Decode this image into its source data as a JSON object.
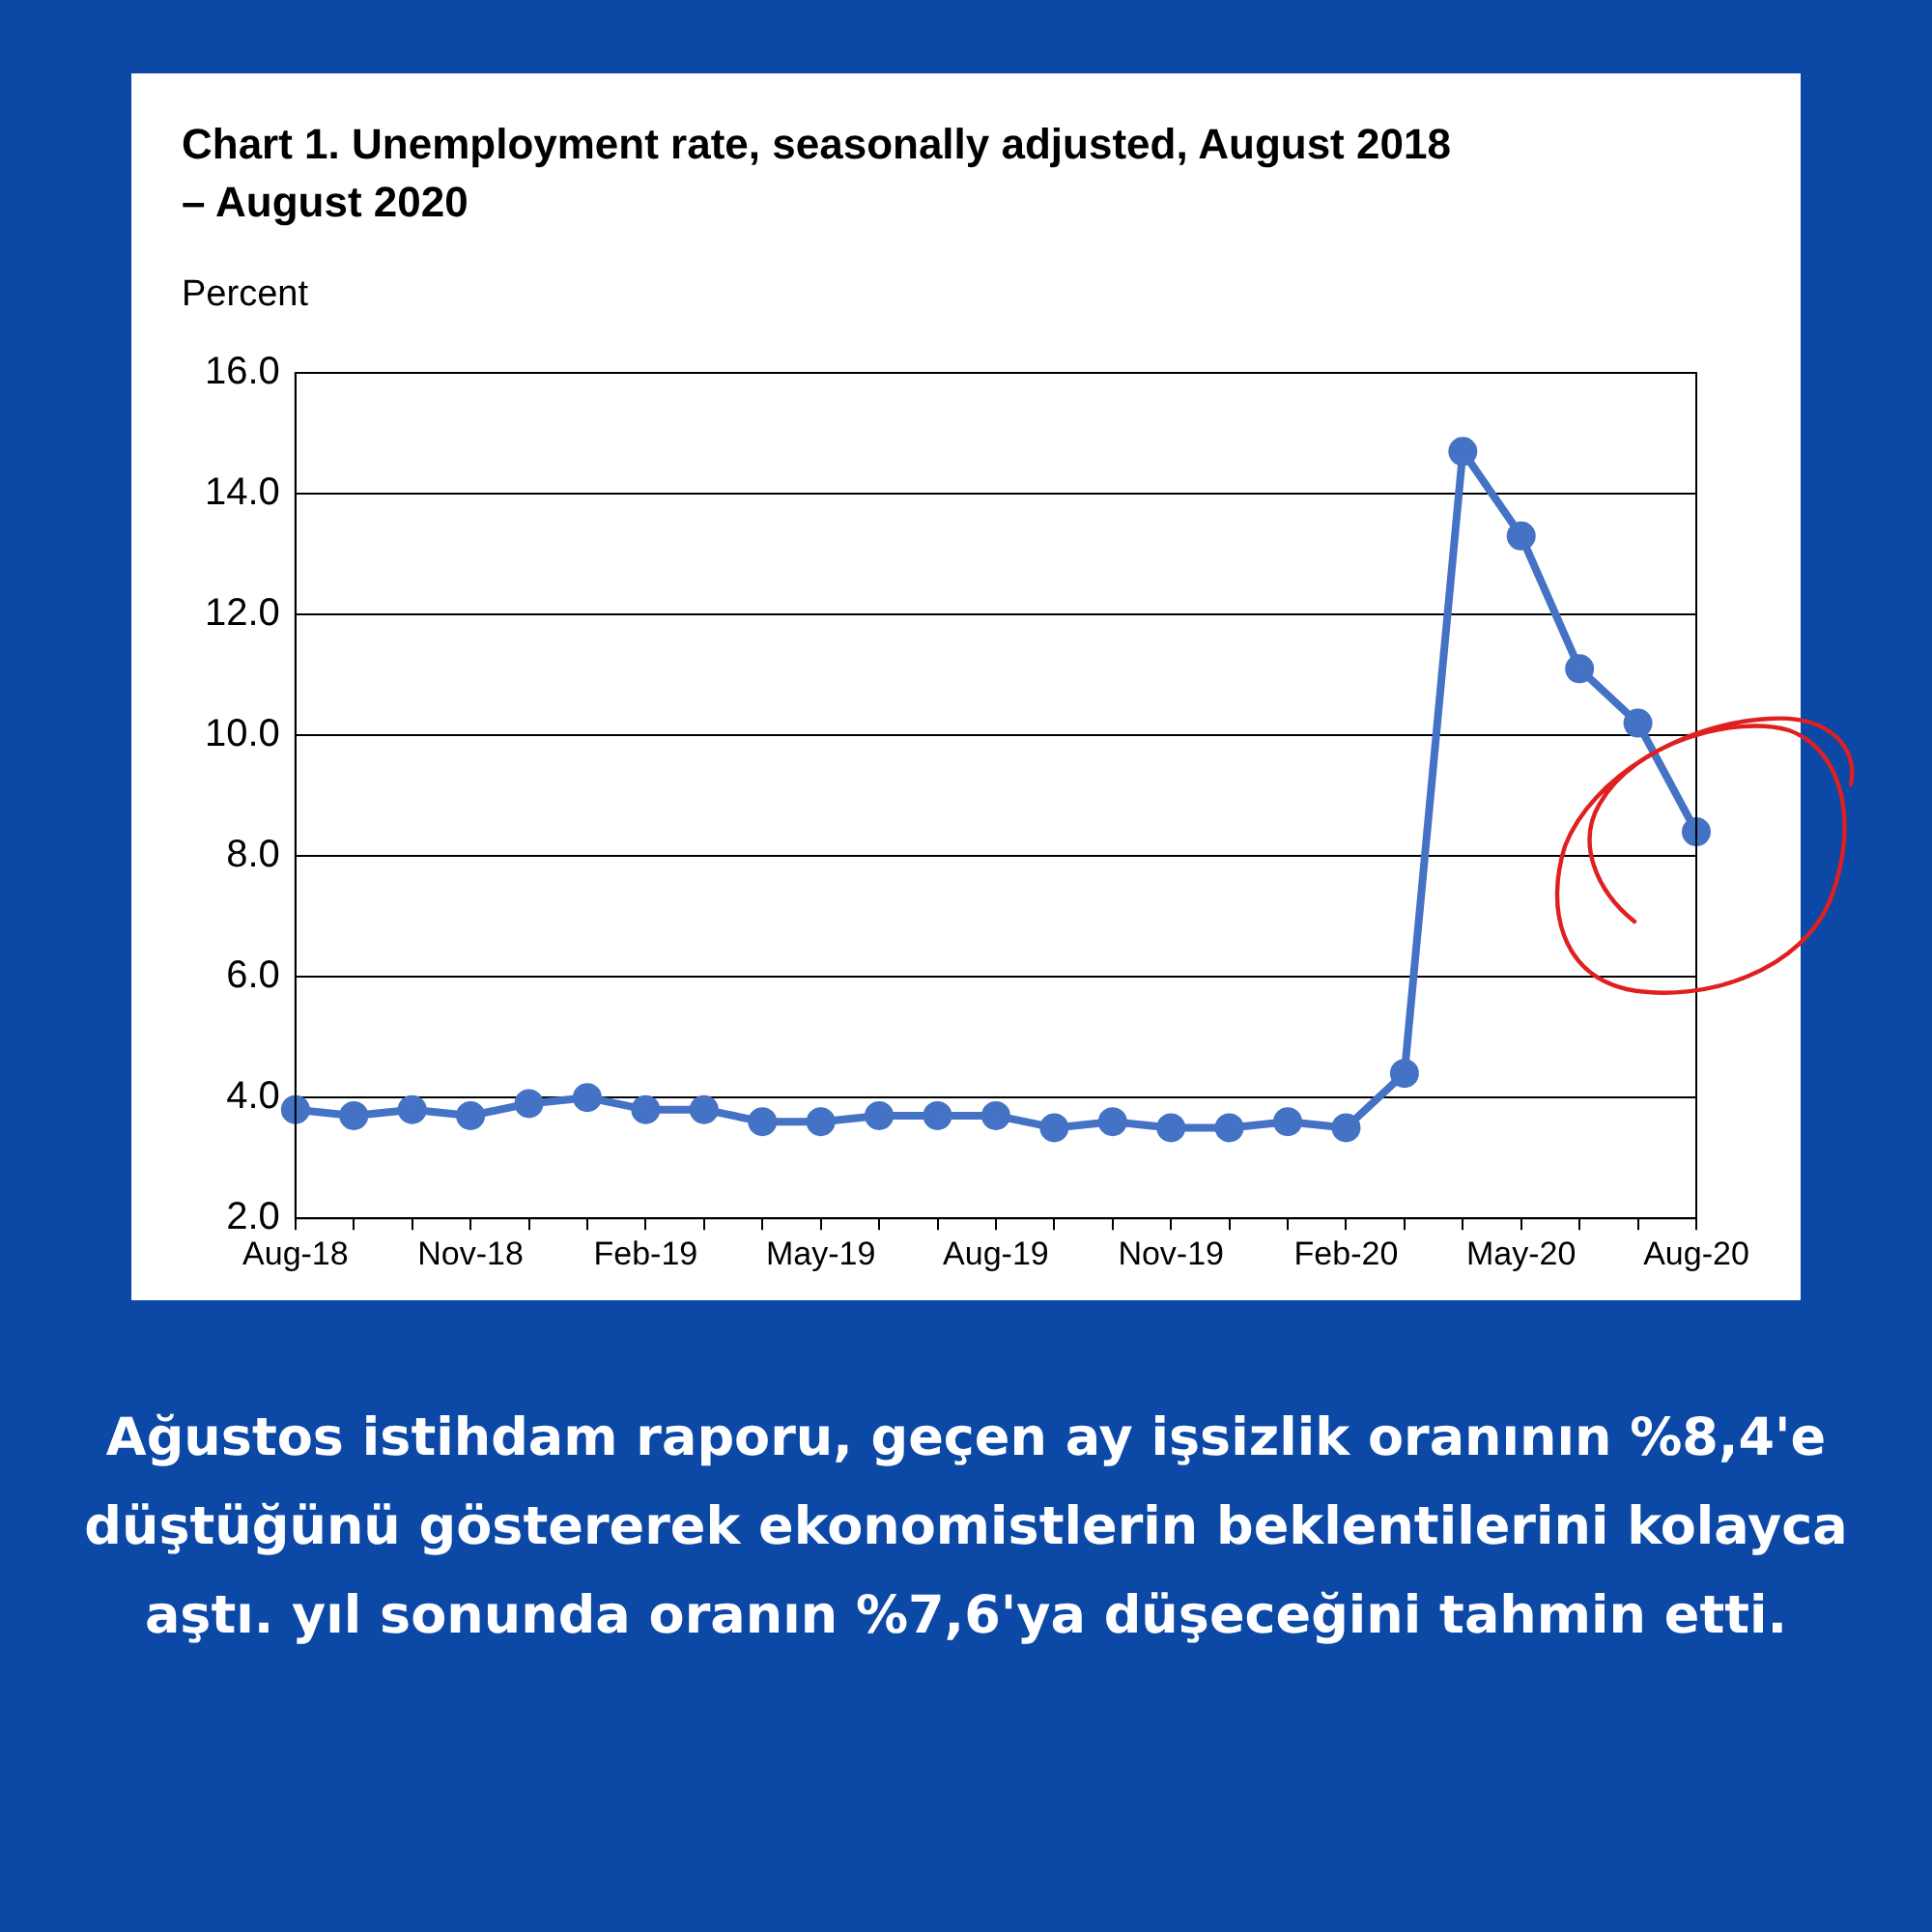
{
  "chart_data": {
    "type": "line",
    "title": "Chart 1. Unemployment rate, seasonally adjusted, August 2018 – August 2020",
    "ylabel": "Percent",
    "categories": [
      "Aug-18",
      null,
      null,
      "Nov-18",
      null,
      null,
      "Feb-19",
      null,
      null,
      "May-19",
      null,
      null,
      "Aug-19",
      null,
      null,
      "Nov-19",
      null,
      null,
      "Feb-20",
      null,
      null,
      "May-20",
      null,
      null,
      "Aug-20"
    ],
    "series": [
      {
        "color": "#4472c4",
        "values": [
          3.8,
          3.7,
          3.8,
          3.7,
          3.9,
          4.0,
          3.8,
          3.8,
          3.6,
          3.6,
          3.7,
          3.7,
          3.7,
          3.5,
          3.6,
          3.5,
          3.5,
          3.6,
          3.5,
          4.4,
          14.7,
          13.3,
          11.1,
          10.2,
          8.4
        ]
      }
    ],
    "ylim": [
      2,
      16
    ],
    "yticks": [
      {
        "value": 2,
        "label": "2.0"
      },
      {
        "value": 4,
        "label": "4.0"
      },
      {
        "value": 6,
        "label": "6.0"
      },
      {
        "value": 8,
        "label": "8.0"
      },
      {
        "value": 10,
        "label": "10.0"
      },
      {
        "value": 12,
        "label": "12.0"
      },
      {
        "value": 14,
        "label": "14.0"
      },
      {
        "value": 16,
        "label": "16.0"
      }
    ],
    "grid": "y",
    "legend": false,
    "marker": "circle",
    "line_style": "solid",
    "annotations": [
      "Ağustos istihdam raporu, geçen ay işsizlik oranının %8,4'e düştüğünü göstererek ekonomistlerin beklentilerini kolayca aştı. yıl sonunda oranın %7,6'ya düşeceğini tahmin etti."
    ]
  }
}
